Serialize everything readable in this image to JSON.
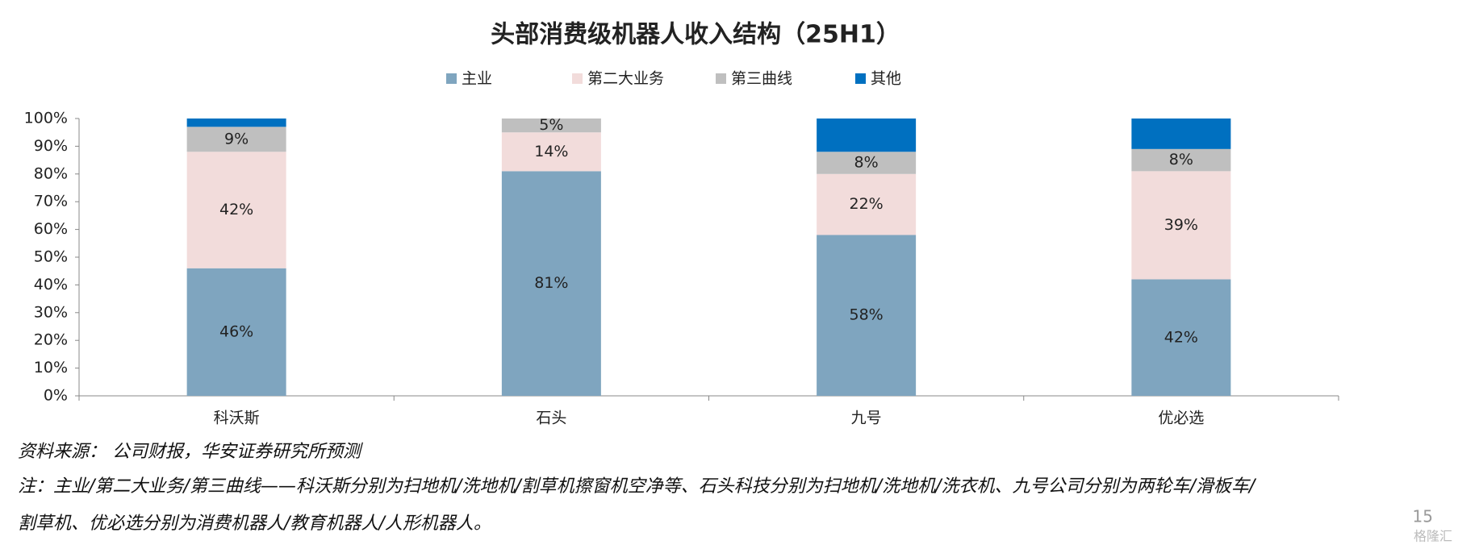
{
  "chart_data": {
    "type": "stacked_bar",
    "title": "头部消费级机器人收入结构（25H1）",
    "categories": [
      "科沃斯",
      "石头",
      "九号",
      "优必选"
    ],
    "series": [
      {
        "name": "主业",
        "color": "#7fa5bf",
        "values": [
          46,
          81,
          58,
          42
        ],
        "value_labels": [
          "46%",
          "81%",
          "58%",
          "42%"
        ]
      },
      {
        "name": "第二大业务",
        "color": "#f2dcdb",
        "values": [
          42,
          14,
          22,
          39
        ],
        "value_labels": [
          "42%",
          "14%",
          "22%",
          "39%"
        ]
      },
      {
        "name": "第三曲线",
        "color": "#bfbfbf",
        "values": [
          9,
          5,
          8,
          8
        ],
        "value_labels": [
          "9%",
          "5%",
          "8%",
          "8%"
        ]
      },
      {
        "name": "其他",
        "color": "#0070c0",
        "values": [
          3,
          0,
          12,
          11
        ]
      }
    ],
    "ylim": [
      0,
      100
    ],
    "yticks": [
      {
        "value": 0,
        "label": "0%"
      },
      {
        "value": 10,
        "label": "10%"
      },
      {
        "value": 20,
        "label": "20%"
      },
      {
        "value": 30,
        "label": "30%"
      },
      {
        "value": 40,
        "label": "40%"
      },
      {
        "value": 50,
        "label": "50%"
      },
      {
        "value": 60,
        "label": "60%"
      },
      {
        "value": 70,
        "label": "70%"
      },
      {
        "value": 80,
        "label": "80%"
      },
      {
        "value": 90,
        "label": "90%"
      },
      {
        "value": 100,
        "label": "100%"
      }
    ],
    "legend": "top",
    "source": "资料来源： 公司财报，华安证券研究所预测",
    "note": [
      "注：主业/第二大业务/第三曲线——科沃斯分别为扫地机/洗地机/割草机擦窗机空净等、石头科技分别为扫地机/洗地机/洗衣机、九号公司分别为两轮车/滑板车/",
      "割草机、优必选分别为消费机器人/教育机器人/人形机器人。"
    ],
    "page_number": "15",
    "watermark": "格隆汇"
  }
}
